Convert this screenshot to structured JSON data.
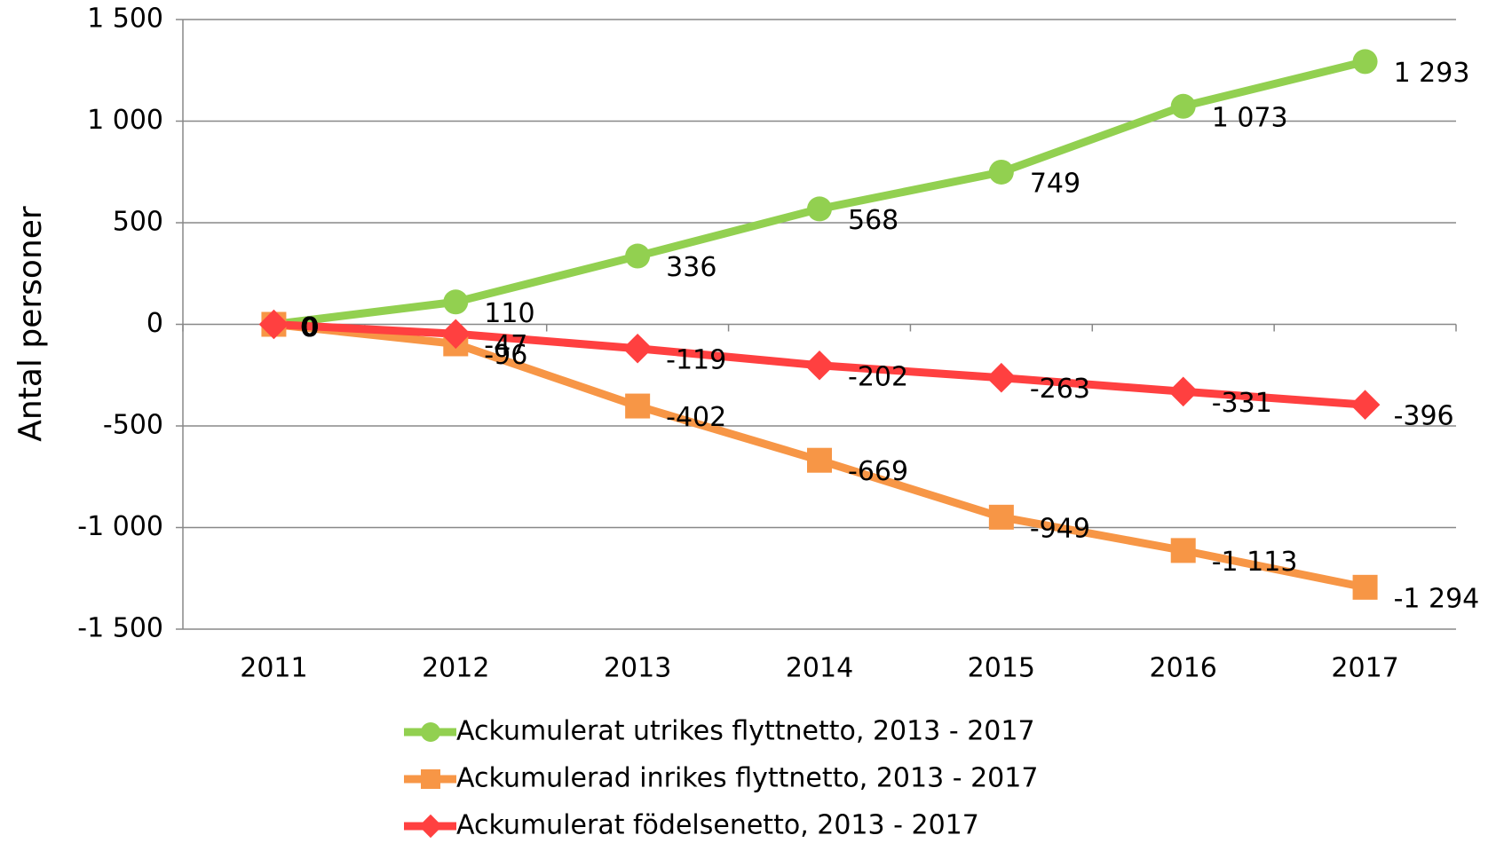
{
  "chart_data": {
    "type": "line",
    "y_label": "Antal personer",
    "categories": [
      "2011",
      "2012",
      "2013",
      "2014",
      "2015",
      "2016",
      "2017"
    ],
    "series": [
      {
        "name": "Ackumulerat utrikes flyttnetto, 2013 - 2017",
        "color": "#92d050",
        "marker": "circle",
        "values": [
          0,
          110,
          336,
          568,
          749,
          1073,
          1293
        ],
        "value_labels": [
          "0",
          "110",
          "336",
          "568",
          "749",
          "1 073",
          "1 293"
        ]
      },
      {
        "name": "Ackumulerad inrikes flyttnetto, 2013 - 2017",
        "color": "#f79646",
        "marker": "square",
        "values": [
          0,
          -96,
          -402,
          -669,
          -949,
          -1113,
          -1294
        ],
        "value_labels": [
          "0",
          "-96",
          "-402",
          "-669",
          "-949",
          "-1 113",
          "-1 294"
        ]
      },
      {
        "name": "Ackumulerat födelsenetto, 2013 - 2017",
        "color": "#ff4040",
        "marker": "diamond",
        "values": [
          0,
          -47,
          -119,
          -202,
          -263,
          -331,
          -396
        ],
        "value_labels": [
          "0",
          "-47",
          "-119",
          "-202",
          "-263",
          "-331",
          "-396"
        ]
      }
    ],
    "ylim": [
      -1500,
      1500
    ],
    "yticks": [
      {
        "value": -1500,
        "label": "-1 500"
      },
      {
        "value": -1000,
        "label": "-1 000"
      },
      -500,
      0,
      500,
      {
        "value": 1000,
        "label": "1 000"
      },
      {
        "value": 1500,
        "label": "1 500"
      }
    ],
    "grid": true,
    "legend": "bottom"
  }
}
